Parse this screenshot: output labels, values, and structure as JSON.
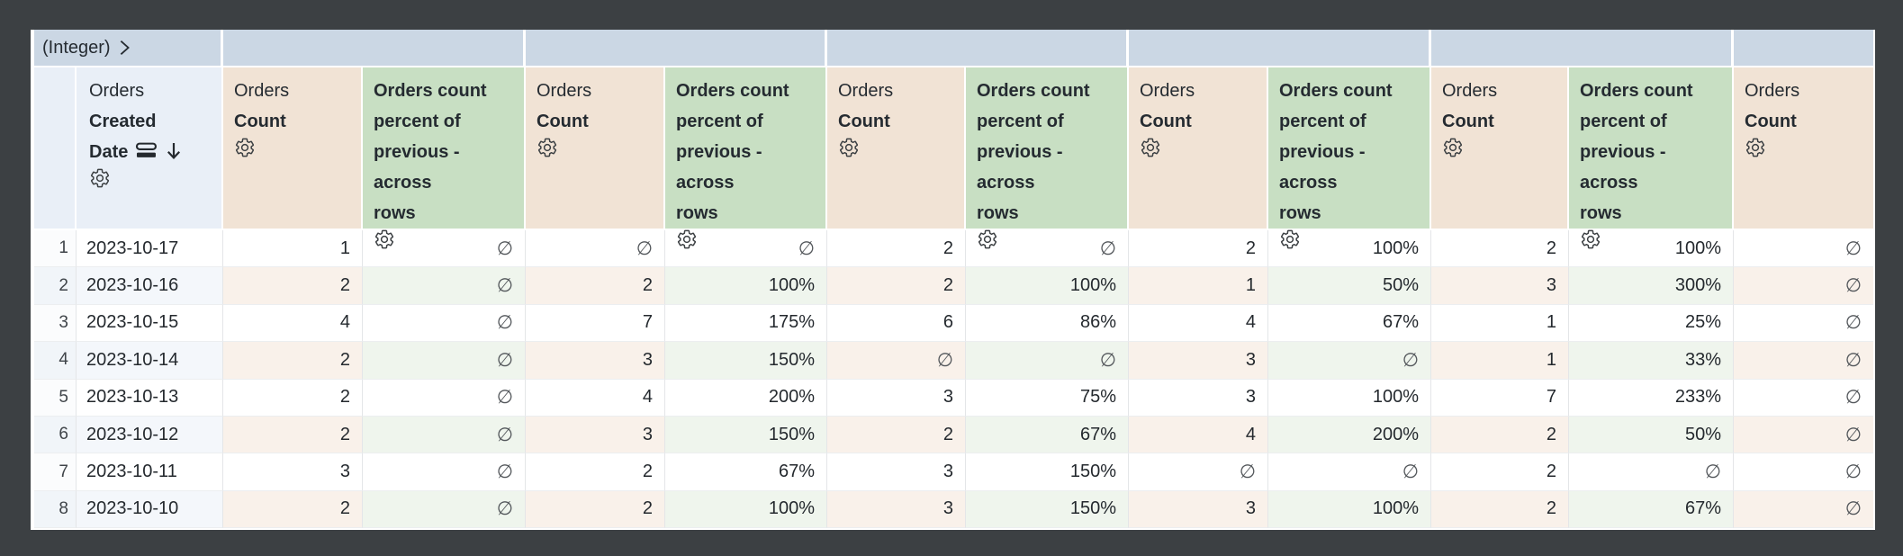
{
  "pivot_band": {
    "label": "(Integer)",
    "chevron_icon": "chevron-right-icon",
    "color": "#cbd7e4"
  },
  "table": {
    "null_symbol": "∅",
    "colors": {
      "dimension_header_bg": "#e9eff7",
      "measure_header_bg": "#f1e3d5",
      "calc_header_bg": "#c8dfc3",
      "even_row_dimension_bg": "#f4f7fb",
      "even_row_measure_bg": "#f9f1ea",
      "even_row_calc_bg": "#eff5ed",
      "backdrop": "#3c4043",
      "text": "#24292e"
    },
    "columns": [
      {
        "id": "row-number",
        "kind": "rownum",
        "header_lines": [],
        "bold_from": 99,
        "gear": false,
        "icons": []
      },
      {
        "id": "orders-created-date",
        "kind": "dim",
        "header_lines": [
          "Orders",
          "Created",
          "Date"
        ],
        "bold_from": 1,
        "gear": true,
        "icons": [
          "merged-rows-icon",
          "sort-desc-icon"
        ]
      },
      {
        "id": "orders-count-1",
        "kind": "measure",
        "header_lines": [
          "Orders",
          "Count"
        ],
        "bold_from": 1,
        "gear": true,
        "icons": []
      },
      {
        "id": "orders-count-pct-1",
        "kind": "calc",
        "header_lines": [
          "Orders count",
          "percent of",
          "previous -",
          "across",
          "rows"
        ],
        "bold_from": 0,
        "gear": true,
        "icons": []
      },
      {
        "id": "orders-count-2",
        "kind": "measure",
        "header_lines": [
          "Orders",
          "Count"
        ],
        "bold_from": 1,
        "gear": true,
        "icons": []
      },
      {
        "id": "orders-count-pct-2",
        "kind": "calc",
        "header_lines": [
          "Orders count",
          "percent of",
          "previous -",
          "across",
          "rows"
        ],
        "bold_from": 0,
        "gear": true,
        "icons": []
      },
      {
        "id": "orders-count-3",
        "kind": "measure",
        "header_lines": [
          "Orders",
          "Count"
        ],
        "bold_from": 1,
        "gear": true,
        "icons": []
      },
      {
        "id": "orders-count-pct-3",
        "kind": "calc",
        "header_lines": [
          "Orders count",
          "percent of",
          "previous -",
          "across",
          "rows"
        ],
        "bold_from": 0,
        "gear": true,
        "icons": []
      },
      {
        "id": "orders-count-4",
        "kind": "measure",
        "header_lines": [
          "Orders",
          "Count"
        ],
        "bold_from": 1,
        "gear": true,
        "icons": []
      },
      {
        "id": "orders-count-pct-4",
        "kind": "calc",
        "header_lines": [
          "Orders count",
          "percent of",
          "previous -",
          "across",
          "rows"
        ],
        "bold_from": 0,
        "gear": true,
        "icons": []
      },
      {
        "id": "orders-count-5",
        "kind": "measure",
        "header_lines": [
          "Orders",
          "Count"
        ],
        "bold_from": 1,
        "gear": true,
        "icons": []
      },
      {
        "id": "orders-count-pct-5",
        "kind": "calc",
        "header_lines": [
          "Orders count",
          "percent of",
          "previous -",
          "across",
          "rows"
        ],
        "bold_from": 0,
        "gear": true,
        "icons": []
      },
      {
        "id": "orders-count-6",
        "kind": "measure",
        "header_lines": [
          "Orders",
          "Count"
        ],
        "bold_from": 1,
        "gear": true,
        "icons": []
      }
    ],
    "rows": [
      {
        "n": "1",
        "date": "2023-10-17",
        "values": [
          "1",
          "∅",
          "∅",
          "∅",
          "2",
          "∅",
          "2",
          "100%",
          "2",
          "100%",
          "∅"
        ]
      },
      {
        "n": "2",
        "date": "2023-10-16",
        "values": [
          "2",
          "∅",
          "2",
          "100%",
          "2",
          "100%",
          "1",
          "50%",
          "3",
          "300%",
          "∅"
        ]
      },
      {
        "n": "3",
        "date": "2023-10-15",
        "values": [
          "4",
          "∅",
          "7",
          "175%",
          "6",
          "86%",
          "4",
          "67%",
          "1",
          "25%",
          "∅"
        ]
      },
      {
        "n": "4",
        "date": "2023-10-14",
        "values": [
          "2",
          "∅",
          "3",
          "150%",
          "∅",
          "∅",
          "3",
          "∅",
          "1",
          "33%",
          "∅"
        ]
      },
      {
        "n": "5",
        "date": "2023-10-13",
        "values": [
          "2",
          "∅",
          "4",
          "200%",
          "3",
          "75%",
          "3",
          "100%",
          "7",
          "233%",
          "∅"
        ]
      },
      {
        "n": "6",
        "date": "2023-10-12",
        "values": [
          "2",
          "∅",
          "3",
          "150%",
          "2",
          "67%",
          "4",
          "200%",
          "2",
          "50%",
          "∅"
        ]
      },
      {
        "n": "7",
        "date": "2023-10-11",
        "values": [
          "3",
          "∅",
          "2",
          "67%",
          "3",
          "150%",
          "∅",
          "∅",
          "2",
          "∅",
          "∅"
        ]
      },
      {
        "n": "8",
        "date": "2023-10-10",
        "values": [
          "2",
          "∅",
          "2",
          "100%",
          "3",
          "150%",
          "3",
          "100%",
          "2",
          "67%",
          "∅"
        ]
      }
    ]
  }
}
